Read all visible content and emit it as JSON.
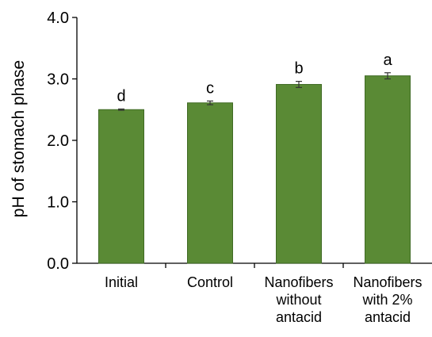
{
  "chart_data": {
    "type": "bar",
    "title": "",
    "xlabel": "",
    "ylabel": "pH of stomach phase",
    "ylim": [
      0,
      4
    ],
    "yticks": [
      "0.0",
      "1.0",
      "2.0",
      "3.0",
      "4.0"
    ],
    "grid": false,
    "categories": [
      [
        "Initial"
      ],
      [
        "Control"
      ],
      [
        "Nanofibers",
        "without",
        "antacid"
      ],
      [
        "Nanofibers",
        "with 2%",
        "antacid"
      ]
    ],
    "values": [
      2.5,
      2.61,
      2.91,
      3.05
    ],
    "errors": [
      0.01,
      0.03,
      0.05,
      0.05
    ],
    "annotations": [
      "d",
      "c",
      "b",
      "a"
    ],
    "colors": {
      "bar": "#5a8a35",
      "bar_edge": "#3f6a24",
      "axis": "#000000"
    }
  }
}
